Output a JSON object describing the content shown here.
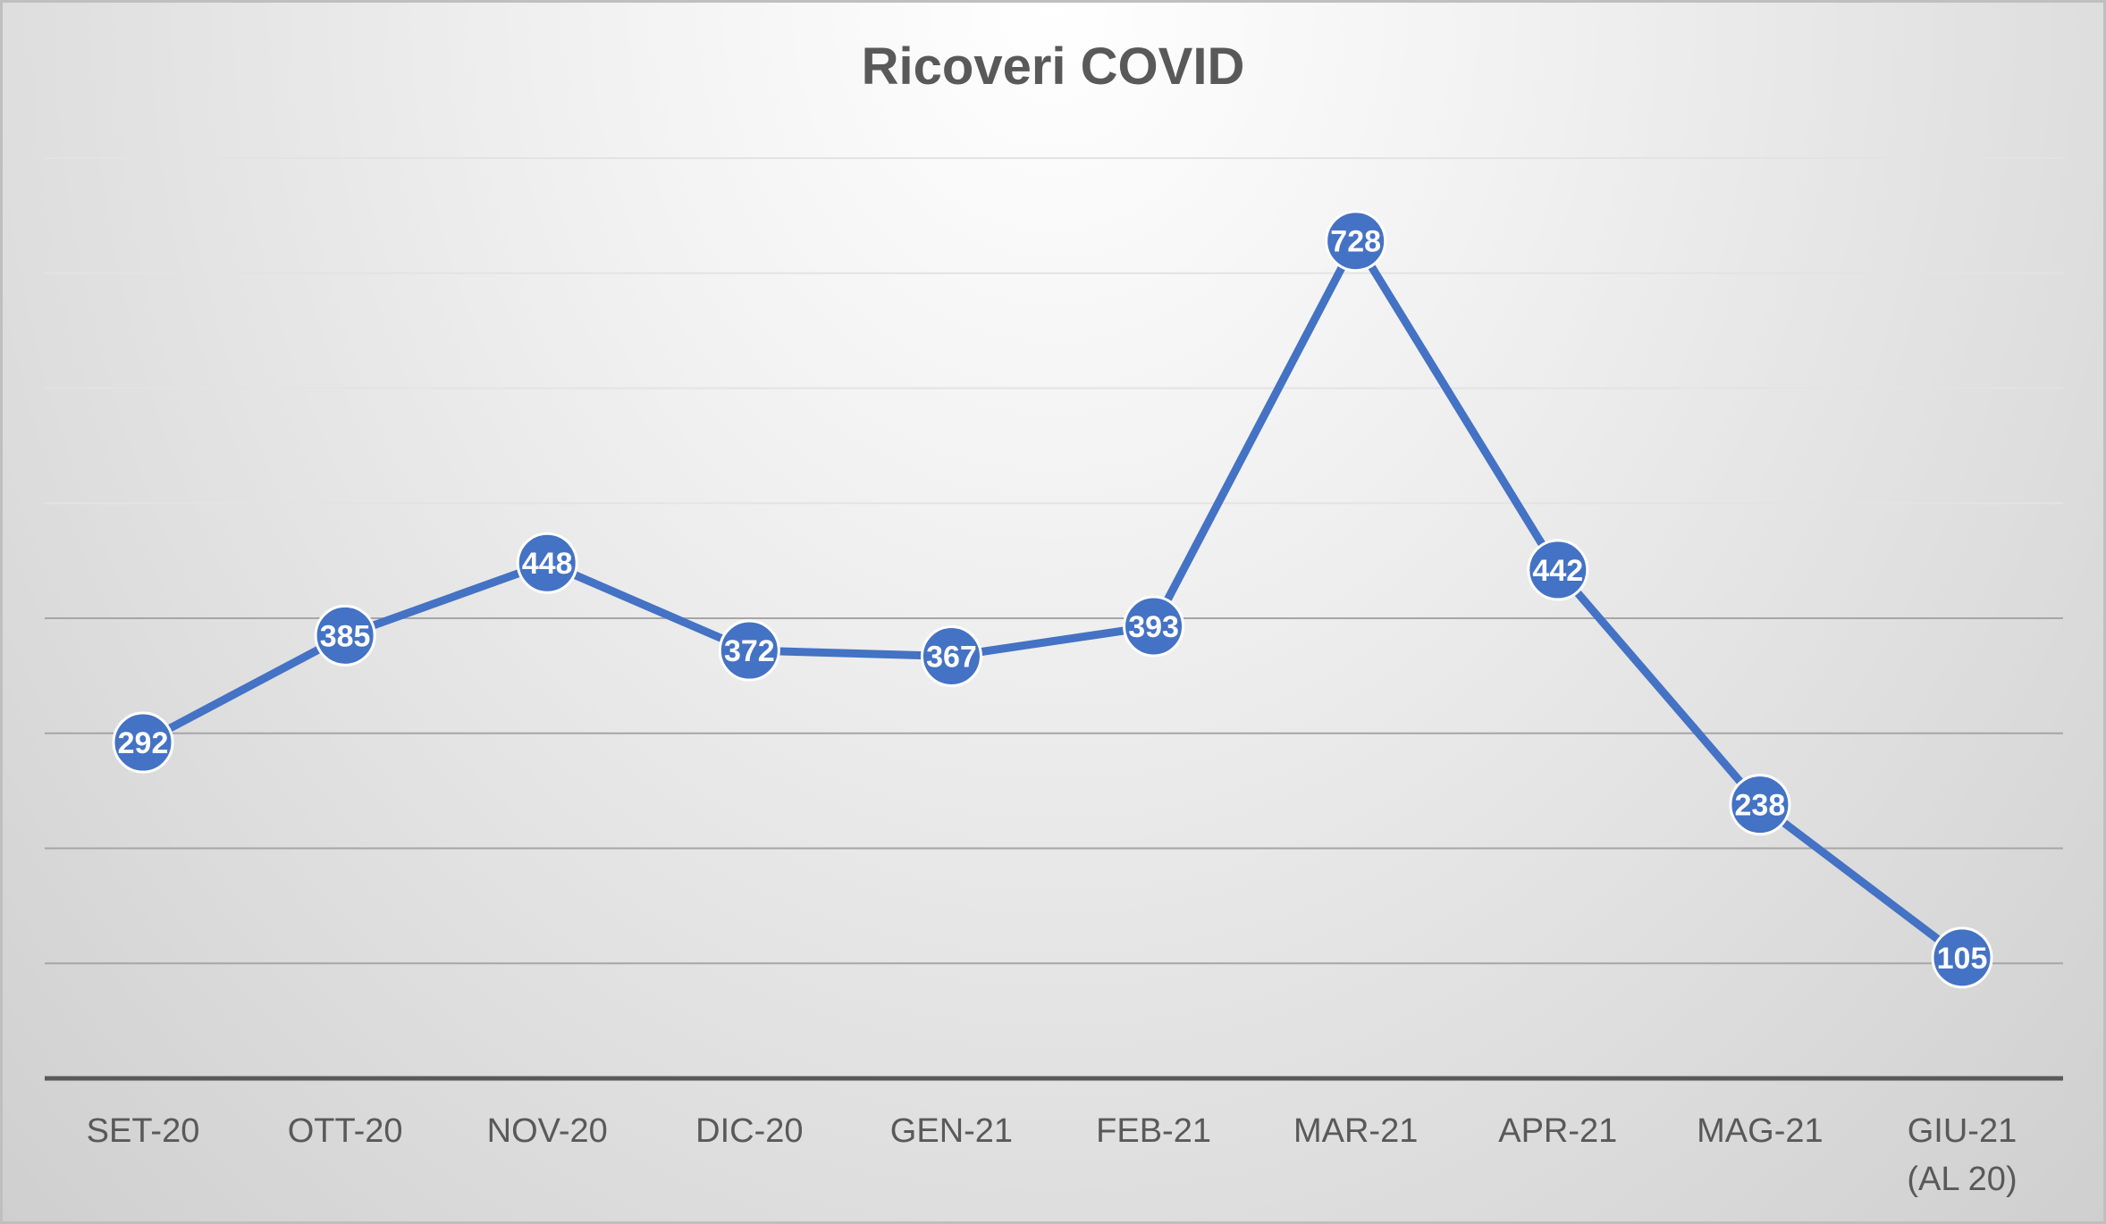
{
  "chart_data": {
    "type": "line",
    "title": "Ricoveri COVID",
    "xlabel": "",
    "ylabel": "",
    "categories": [
      "SET-20",
      "OTT-20",
      "NOV-20",
      "DIC-20",
      "GEN-21",
      "FEB-21",
      "MAR-21",
      "APR-21",
      "MAG-21",
      "GIU-21\n(AL 20)"
    ],
    "series": [
      {
        "values": [
          292,
          385,
          448,
          372,
          367,
          393,
          728,
          442,
          238,
          105
        ]
      }
    ],
    "ylim": [
      0,
      800
    ],
    "grid": true,
    "data_labels": true,
    "line_color": "#4472c4"
  }
}
